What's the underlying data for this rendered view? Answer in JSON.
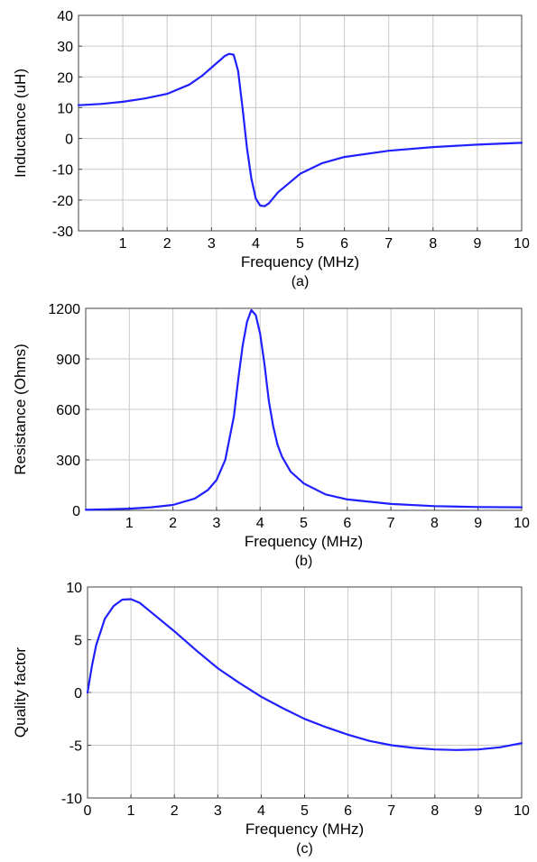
{
  "chart_data": [
    {
      "type": "line",
      "panel_label": "(a)",
      "xlabel": "Frequency (MHz)",
      "ylabel": "Inductance (uH)",
      "xlim": [
        0,
        10
      ],
      "ylim": [
        -30,
        40
      ],
      "xticks": [
        1,
        2,
        3,
        4,
        5,
        6,
        7,
        8,
        9,
        10
      ],
      "yticks": [
        -30,
        -20,
        -10,
        0,
        10,
        20,
        30,
        40
      ],
      "grid": true,
      "line_color": "#2020ff",
      "series": [
        {
          "x": [
            0,
            0.5,
            1.0,
            1.5,
            2.0,
            2.5,
            2.8,
            3.0,
            3.2,
            3.3,
            3.4,
            3.5,
            3.6,
            3.7,
            3.8,
            3.9,
            4.0,
            4.1,
            4.2,
            4.3,
            4.5,
            5.0,
            5.5,
            6.0,
            7.0,
            8.0,
            9.0,
            10.0
          ],
          "y": [
            10.8,
            11.2,
            11.9,
            13.0,
            14.5,
            17.5,
            20.5,
            23.0,
            25.5,
            26.8,
            27.5,
            27.2,
            22.0,
            10.0,
            -3.0,
            -13.0,
            -19.5,
            -21.8,
            -22.0,
            -21.0,
            -17.5,
            -11.5,
            -8.0,
            -6.0,
            -4.0,
            -2.8,
            -2.0,
            -1.4
          ]
        }
      ]
    },
    {
      "type": "line",
      "panel_label": "(b)",
      "xlabel": "Frequency (MHz)",
      "ylabel": "Resistance (Ohms)",
      "xlim": [
        0,
        10
      ],
      "ylim": [
        0,
        1200
      ],
      "xticks": [
        1,
        2,
        3,
        4,
        5,
        6,
        7,
        8,
        9,
        10
      ],
      "yticks": [
        0,
        300,
        600,
        900,
        1200
      ],
      "grid": true,
      "line_color": "#2020ff",
      "series": [
        {
          "x": [
            0,
            0.5,
            1.0,
            1.5,
            2.0,
            2.5,
            2.8,
            3.0,
            3.2,
            3.4,
            3.5,
            3.6,
            3.7,
            3.8,
            3.9,
            4.0,
            4.1,
            4.2,
            4.3,
            4.4,
            4.5,
            4.7,
            5.0,
            5.5,
            6.0,
            7.0,
            8.0,
            9.0,
            10.0
          ],
          "y": [
            3,
            6,
            10,
            18,
            32,
            70,
            120,
            180,
            300,
            560,
            780,
            980,
            1120,
            1190,
            1160,
            1050,
            870,
            650,
            500,
            390,
            320,
            230,
            160,
            95,
            65,
            38,
            25,
            20,
            18
          ]
        }
      ]
    },
    {
      "type": "line",
      "panel_label": "(c)",
      "xlabel": "Frequency (MHz)",
      "ylabel": "Quality factor",
      "xlim": [
        0,
        10
      ],
      "ylim": [
        -10,
        10
      ],
      "xticks": [
        0,
        1,
        2,
        3,
        4,
        5,
        6,
        7,
        8,
        9,
        10
      ],
      "yticks": [
        -10,
        -5,
        0,
        5,
        10
      ],
      "grid": true,
      "line_color": "#2020ff",
      "series": [
        {
          "x": [
            0,
            0.1,
            0.2,
            0.4,
            0.6,
            0.8,
            1.0,
            1.2,
            1.5,
            2.0,
            2.5,
            3.0,
            3.5,
            4.0,
            4.5,
            5.0,
            5.5,
            6.0,
            6.5,
            7.0,
            7.5,
            8.0,
            8.5,
            9.0,
            9.5,
            10.0
          ],
          "y": [
            0,
            2.5,
            4.5,
            7.0,
            8.2,
            8.8,
            8.85,
            8.5,
            7.5,
            5.8,
            4.0,
            2.3,
            0.9,
            -0.4,
            -1.5,
            -2.5,
            -3.3,
            -4.0,
            -4.6,
            -5.0,
            -5.25,
            -5.4,
            -5.45,
            -5.4,
            -5.2,
            -4.8
          ]
        }
      ]
    }
  ]
}
